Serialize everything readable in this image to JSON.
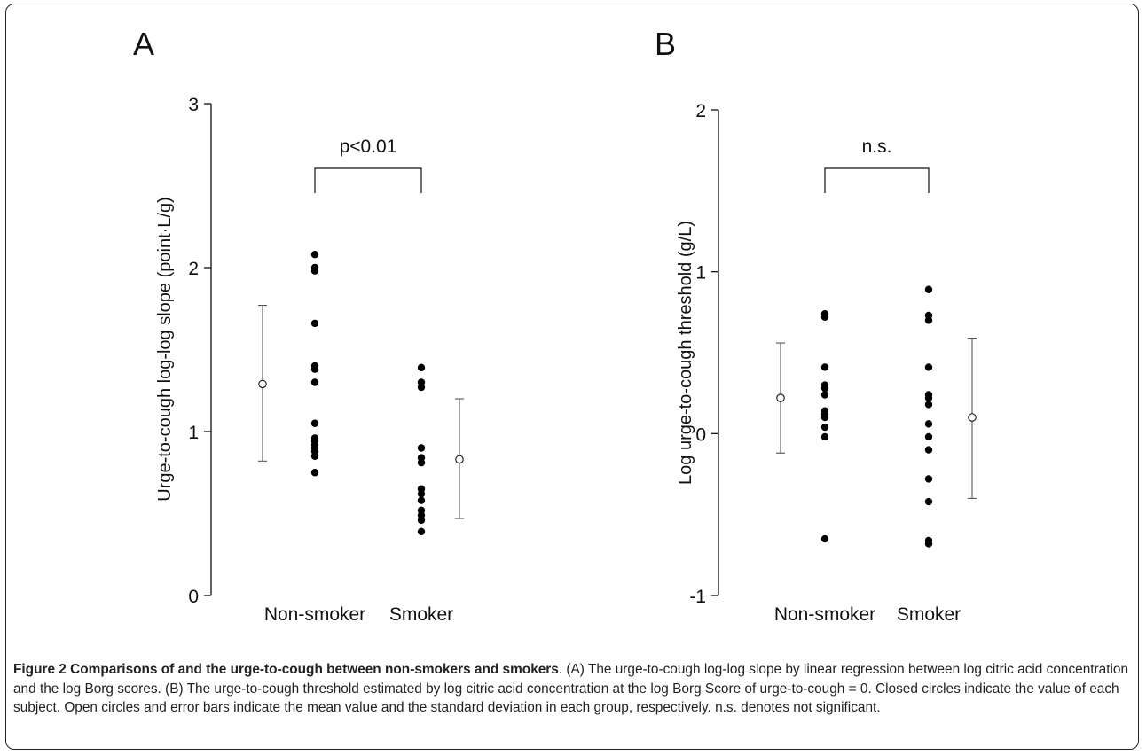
{
  "chart_data": [
    {
      "type": "scatter",
      "panel_label": "A",
      "ylabel": "Urge-to-cough log-log slope (point·L/g)",
      "categories": [
        "Non-smoker",
        "Smoker"
      ],
      "ylim": [
        0,
        3
      ],
      "yticks": [
        "0",
        "1",
        "2",
        "3"
      ],
      "significance": "p<0.01",
      "points": {
        "Non-smoker": [
          2.08,
          2.0,
          1.98,
          1.66,
          1.4,
          1.38,
          1.3,
          1.05,
          0.96,
          0.94,
          0.92,
          0.9,
          0.88,
          0.85,
          0.75
        ],
        "Smoker": [
          1.39,
          1.3,
          1.27,
          0.9,
          0.84,
          0.81,
          0.65,
          0.62,
          0.58,
          0.52,
          0.49,
          0.46,
          0.39
        ]
      },
      "summary": {
        "Non-smoker": {
          "mean": 1.29,
          "sd_low": 0.82,
          "sd_high": 1.77
        },
        "Smoker": {
          "mean": 0.83,
          "sd_low": 0.47,
          "sd_high": 1.2
        }
      }
    },
    {
      "type": "scatter",
      "panel_label": "B",
      "ylabel": "Log urge-to-cough threshold (g/L)",
      "categories": [
        "Non-smoker",
        "Smoker"
      ],
      "ylim": [
        -1,
        2
      ],
      "yticks": [
        "-1",
        "0",
        "1",
        "2"
      ],
      "significance": "n.s.",
      "points": {
        "Non-smoker": [
          0.74,
          0.72,
          0.41,
          0.3,
          0.28,
          0.24,
          0.14,
          0.12,
          0.1,
          0.04,
          -0.02,
          -0.65
        ],
        "Smoker": [
          0.89,
          0.73,
          0.7,
          0.41,
          0.24,
          0.22,
          0.18,
          0.06,
          -0.02,
          -0.1,
          -0.28,
          -0.42,
          -0.66,
          -0.68
        ]
      },
      "summary": {
        "Non-smoker": {
          "mean": 0.22,
          "sd_low": -0.12,
          "sd_high": 0.56
        },
        "Smoker": {
          "mean": 0.1,
          "sd_low": -0.4,
          "sd_high": 0.59
        }
      }
    }
  ],
  "caption": {
    "title": "Figure 2 Comparisons of and the urge-to-cough between non-smokers and smokers",
    "text": ". (A) The urge-to-cough log-log slope by linear regression between log citric acid concentration and the log Borg scores. (B) The urge-to-cough threshold estimated by log citric acid concentration at the log Borg Score of urge-to-cough = 0. Closed circles indicate the value of each subject. Open circles and error bars indicate the mean value and the standard deviation in each group, respectively. n.s. denotes not significant."
  }
}
